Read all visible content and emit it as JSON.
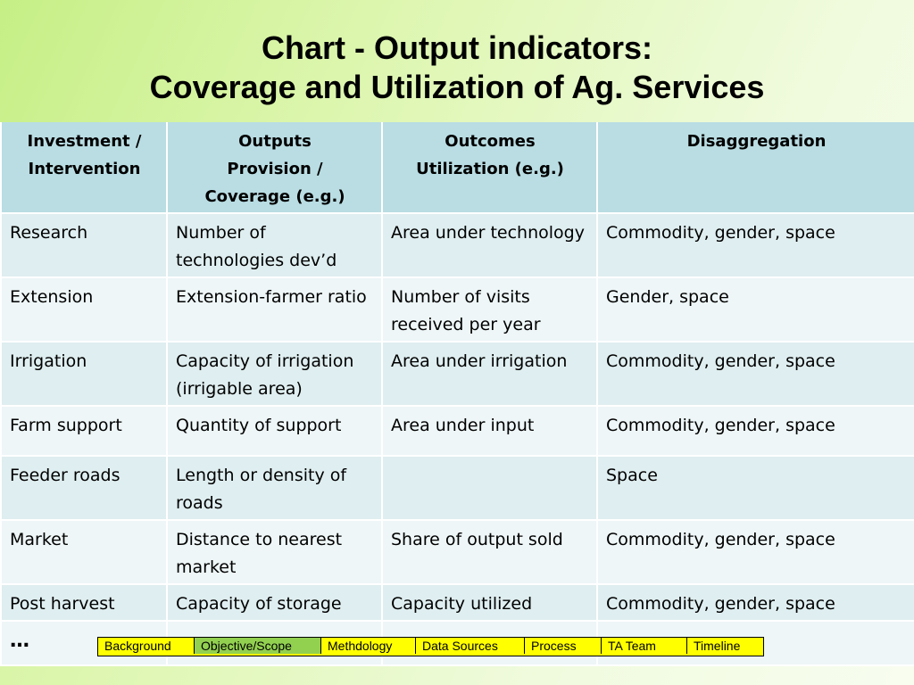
{
  "slide": {
    "title_line1": "Chart - Output indicators:",
    "title_line2": "Coverage and Utilization of Ag. Services"
  },
  "table": {
    "headers": [
      [
        "Investment /",
        "Intervention"
      ],
      [
        "Outputs",
        "Provision /",
        "Coverage (e.g.)"
      ],
      [
        "Outcomes",
        "Utilization (e.g.)"
      ],
      [
        "Disaggregation"
      ]
    ],
    "rows": [
      [
        "Research",
        "Number of technologies dev’d",
        "Area under technology",
        "Commodity, gender, space"
      ],
      [
        "Extension",
        "Extension-farmer ratio",
        "Number of visits received per year",
        "Gender, space"
      ],
      [
        "Irrigation",
        "Capacity of irrigation (irrigable area)",
        "Area under irrigation",
        "Commodity, gender, space"
      ],
      [
        "Farm support",
        "Quantity of support",
        "Area under input",
        "Commodity, gender, space"
      ],
      [
        "Feeder roads",
        "Length or density of roads",
        "",
        "Space"
      ],
      [
        "Market",
        "Distance to nearest market",
        "Share of output sold",
        "Commodity, gender, space"
      ],
      [
        "Post harvest",
        "Capacity of storage",
        "Capacity utilized",
        "Commodity, gender, space"
      ],
      [
        "…",
        "",
        "",
        ""
      ]
    ]
  },
  "nav": {
    "items": [
      "Background",
      "Objective/Scope",
      "Methdology",
      "Data Sources",
      "Process",
      "TA Team",
      "Timeline"
    ],
    "active_index": 1,
    "colors": {
      "default": "#ffff00",
      "active": "#92d050"
    }
  },
  "colors": {
    "header_fill": "#b9dde3",
    "row_fill_odd": "#dfeef0",
    "row_fill_even": "#eef6f7",
    "background_green": "#c6ef86"
  }
}
